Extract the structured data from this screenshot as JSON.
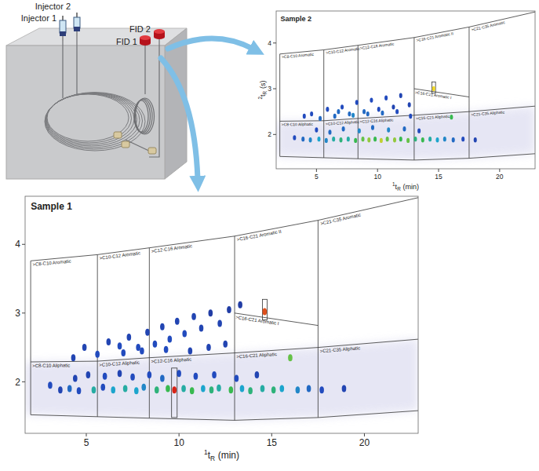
{
  "diagram": {
    "injectors": [
      "Injector 2",
      "Injector 1"
    ],
    "detectors": [
      "FID 2",
      "FID 1"
    ]
  },
  "chart_data": [
    {
      "type": "scatter",
      "title": "Sample 1",
      "x_label": {
        "sup": "1",
        "base": "t",
        "sub": "R",
        "unit": "(min)"
      },
      "xlim": [
        1.7,
        22.9
      ],
      "ylim": [
        1.25,
        4.7
      ],
      "xticks": [
        5,
        10,
        15,
        20
      ],
      "yticks": [
        2,
        3,
        4
      ],
      "x": [
        3.05,
        3.6,
        4.1,
        4.6,
        5.4,
        5.9,
        6.45,
        7.1,
        7.7,
        8.1,
        8.8,
        9.4,
        9.75,
        10.25,
        10.7,
        11.3,
        11.75,
        12.15,
        12.8,
        13.4,
        13.85,
        14.5,
        15.1,
        15.55,
        16.4,
        17.0,
        17.7,
        18.9,
        4.4,
        5.1,
        6.0,
        6.8,
        7.5,
        8.4,
        9.1,
        10.0,
        10.9,
        11.9,
        13.1,
        14.2,
        4.3,
        4.9,
        5.6,
        6.2,
        6.8,
        7.3,
        7.8,
        8.3,
        8.7,
        9.1,
        9.5,
        9.9,
        10.3,
        10.8,
        11.2,
        11.7,
        12.2,
        12.7,
        13.3,
        7.0,
        8.0,
        9.3,
        10.6,
        11.6,
        12.5,
        14.62,
        16.0
      ],
      "y": [
        1.95,
        1.88,
        1.9,
        1.87,
        1.88,
        1.92,
        1.88,
        1.9,
        1.87,
        1.92,
        1.88,
        1.9,
        1.88,
        1.9,
        1.87,
        1.9,
        1.88,
        1.91,
        1.88,
        1.9,
        1.87,
        1.9,
        1.88,
        1.9,
        1.88,
        1.9,
        1.88,
        1.9,
        2.05,
        2.1,
        2.08,
        2.12,
        2.07,
        2.1,
        2.05,
        2.12,
        2.08,
        2.1,
        2.05,
        2.1,
        2.35,
        2.5,
        2.4,
        2.58,
        2.52,
        2.65,
        2.5,
        2.72,
        2.55,
        2.8,
        2.62,
        2.88,
        2.7,
        2.95,
        2.78,
        3.0,
        2.85,
        3.05,
        3.12,
        2.42,
        2.45,
        2.47,
        2.45,
        2.5,
        2.55,
        3.02,
        2.35
      ],
      "intensity": [
        0.3,
        0.25,
        0.35,
        0.3,
        0.5,
        0.3,
        0.45,
        0.5,
        0.45,
        0.4,
        0.55,
        0.6,
        1.0,
        0.5,
        0.6,
        0.45,
        0.55,
        0.5,
        0.6,
        0.45,
        0.55,
        0.5,
        0.55,
        0.45,
        0.4,
        0.35,
        0.3,
        0.25,
        0.25,
        0.25,
        0.3,
        0.25,
        0.3,
        0.3,
        0.35,
        0.3,
        0.3,
        0.3,
        0.3,
        0.25,
        0.25,
        0.25,
        0.3,
        0.25,
        0.3,
        0.25,
        0.3,
        0.25,
        0.3,
        0.25,
        0.3,
        0.25,
        0.3,
        0.25,
        0.25,
        0.2,
        0.25,
        0.2,
        0.2,
        0.3,
        0.3,
        0.3,
        0.25,
        0.25,
        0.25,
        0.95,
        0.65
      ],
      "boundaries": [
        2.0,
        5.6,
        8.4,
        13.0,
        17.5
      ],
      "top": {
        "t1": [
          2.0,
          5.6,
          8.4,
          13.0,
          17.5,
          22.9
        ],
        "t2": [
          3.76,
          3.85,
          3.95,
          4.12,
          4.35,
          4.68
        ]
      },
      "divider": {
        "t1": [
          2.0,
          5.6,
          8.4,
          13.0,
          17.5,
          22.9
        ],
        "t2": [
          2.29,
          2.3,
          2.35,
          2.42,
          2.5,
          2.62
        ]
      },
      "bottom": {
        "t1": [
          2.0,
          8.4,
          13.0,
          17.5,
          22.9
        ],
        "t2": [
          1.52,
          1.47,
          1.44,
          1.48,
          1.58
        ]
      },
      "aromatic_i": {
        "t1": [
          13.0,
          17.5
        ],
        "t2": [
          3.0,
          2.82
        ]
      },
      "aromatic_labels": [
        ">C8-C10 Aromatic",
        ">C10-C12 Aromatic",
        ">C12-C16 Aromatic",
        ">C16-C21 Aromatic II",
        ">C21-C35 Aromatic"
      ],
      "aliphatic_labels": [
        ">C8-C10 Aliphatic",
        ">C10-C12 Aliphatic",
        ">C12-C16 Aliphatic",
        ">C16-C21 Aliphatic",
        ">C21-C35 Aliphatic"
      ],
      "aromatic_i_label": ">C16-C21 Aromatic I",
      "boxes": [
        {
          "t1": [
            14.5,
            14.75
          ],
          "t2": [
            2.9,
            3.2
          ]
        },
        {
          "t1": [
            9.6,
            9.9
          ],
          "t2": [
            1.48,
            2.2
          ]
        }
      ]
    },
    {
      "type": "scatter",
      "title": "Sample 2",
      "x_label": {
        "sup": "1",
        "base": "t",
        "sub": "R",
        "unit": "(min)"
      },
      "y_label": {
        "sup": "2",
        "base": "t",
        "sub": "R",
        "unit": "(s)"
      },
      "xlim": [
        1.7,
        22.9
      ],
      "ylim": [
        1.25,
        4.7
      ],
      "xticks": [
        5,
        10,
        15,
        20
      ],
      "yticks": [
        2,
        3,
        4
      ],
      "x": [
        3.2,
        3.9,
        4.5,
        5.2,
        5.8,
        6.4,
        7.0,
        7.6,
        8.2,
        8.8,
        9.3,
        9.8,
        10.3,
        10.8,
        11.4,
        11.9,
        12.5,
        13.1,
        13.7,
        14.3,
        14.9,
        15.5,
        16.2,
        17.0,
        18.0,
        5.0,
        6.1,
        7.2,
        8.5,
        9.6,
        10.9,
        12.2,
        13.4,
        4.0,
        4.6,
        5.3,
        5.9,
        6.5,
        7.1,
        7.7,
        8.3,
        8.9,
        9.5,
        10.1,
        10.7,
        11.3,
        11.9,
        12.6,
        6.8,
        8.0,
        9.2,
        10.4,
        11.6,
        12.7,
        14.6,
        16.05
      ],
      "y": [
        1.93,
        1.9,
        1.88,
        1.9,
        1.87,
        1.9,
        1.88,
        1.9,
        1.87,
        1.9,
        1.88,
        1.9,
        1.87,
        1.9,
        1.88,
        1.9,
        1.87,
        1.9,
        1.88,
        1.9,
        1.88,
        1.9,
        1.88,
        1.9,
        1.88,
        2.1,
        2.05,
        2.12,
        2.08,
        2.15,
        2.1,
        2.12,
        2.08,
        2.4,
        2.45,
        2.35,
        2.55,
        2.4,
        2.6,
        2.45,
        2.7,
        2.5,
        2.75,
        2.55,
        2.8,
        2.6,
        2.85,
        2.65,
        2.5,
        2.42,
        2.45,
        2.47,
        2.5,
        2.4,
        3.0,
        2.38
      ],
      "intensity": [
        0.3,
        0.35,
        0.4,
        0.45,
        0.4,
        0.5,
        0.55,
        0.5,
        0.6,
        0.65,
        0.7,
        0.6,
        0.75,
        0.65,
        0.7,
        0.6,
        0.65,
        0.55,
        0.6,
        0.5,
        0.45,
        0.4,
        0.35,
        0.3,
        0.25,
        0.3,
        0.35,
        0.35,
        0.4,
        0.35,
        0.4,
        0.35,
        0.3,
        0.3,
        0.3,
        0.35,
        0.3,
        0.35,
        0.3,
        0.35,
        0.3,
        0.35,
        0.3,
        0.3,
        0.3,
        0.25,
        0.25,
        0.25,
        0.35,
        0.4,
        0.35,
        0.35,
        0.3,
        0.3,
        0.8,
        0.6
      ],
      "boundaries": [
        2.0,
        5.6,
        8.4,
        13.0,
        17.5
      ],
      "top": {
        "t1": [
          2.0,
          5.6,
          8.4,
          13.0,
          17.5,
          22.9
        ],
        "t2": [
          3.76,
          3.85,
          3.95,
          4.12,
          4.35,
          4.68
        ]
      },
      "divider": {
        "t1": [
          2.0,
          5.6,
          8.4,
          13.0,
          17.5,
          22.9
        ],
        "t2": [
          2.29,
          2.3,
          2.35,
          2.42,
          2.5,
          2.62
        ]
      },
      "bottom": {
        "t1": [
          2.0,
          8.4,
          13.0,
          17.5,
          22.9
        ],
        "t2": [
          1.52,
          1.47,
          1.44,
          1.48,
          1.58
        ]
      },
      "aromatic_i": {
        "t1": [
          13.0,
          17.5
        ],
        "t2": [
          3.0,
          2.82
        ]
      },
      "aromatic_labels": [
        ">C8-C10 Aromatic",
        ">C10-C12 Aromatic",
        ">C12-C16 Aromatic",
        ">C16-C21 Aromatic II",
        ">C21-C35 Aromatic"
      ],
      "aliphatic_labels": [
        ">C8-C10 Aliphatic",
        ">C10-C12 Aliphatic",
        ">C12-C16 Aliphatic",
        ">C16-C21 Aliphatic",
        ">C21-C35 Aliphatic"
      ],
      "aromatic_i_label": ">C16-C21 Aromatic I",
      "boxes": [
        {
          "t1": [
            14.45,
            14.75
          ],
          "t2": [
            2.9,
            3.15
          ]
        }
      ]
    }
  ]
}
